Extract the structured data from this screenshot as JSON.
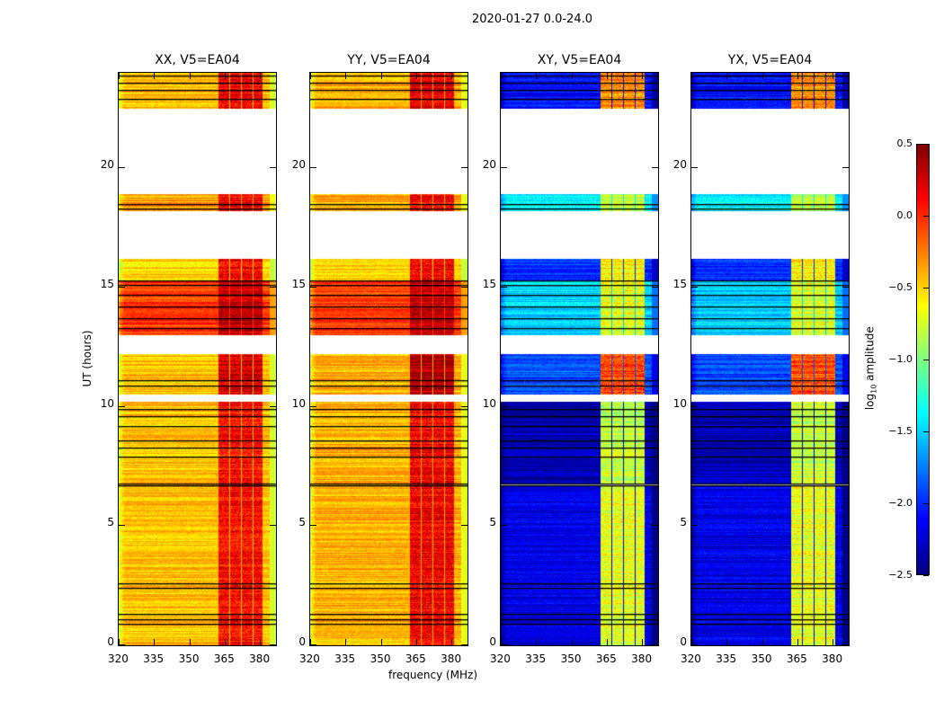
{
  "chart_data": {
    "type": "heatmap",
    "title": "2020-01-27 0.0-24.0",
    "xlabel": "frequency (MHz)",
    "ylabel": "UT (hours)",
    "xlim": [
      320,
      386.8
    ],
    "ylim": [
      0,
      24
    ],
    "xticks": [
      "320",
      "335",
      "350",
      "365",
      "380"
    ],
    "yticks": [
      "0",
      "5",
      "10",
      "15",
      "20"
    ],
    "colorbar": {
      "label": "log10 amplitude",
      "label_main": "log",
      "label_sub": "10",
      "label_rest": " amplitude",
      "range": [
        -2.5,
        0.5
      ],
      "ticks": [
        "−2.5",
        "−2.0",
        "−1.5",
        "−1.0",
        "−0.5",
        "0.0",
        "0.5"
      ],
      "colormap": "jet"
    },
    "flagged_hours": [
      [
        22.6,
        23.1
      ],
      [
        18.9,
        22.5
      ],
      [
        16.2,
        18.2
      ],
      [
        12.2,
        13.0
      ],
      [
        10.2,
        10.5
      ]
    ],
    "flag_lines_hours": [
      0.9,
      1.1,
      1.3,
      2.4,
      2.6,
      6.7,
      6.8,
      7.9,
      8.3,
      8.6,
      9.2,
      9.6,
      9.9,
      10.9,
      11.1,
      13.3,
      13.7,
      14.2,
      14.7,
      15.1,
      15.3,
      18.3,
      18.5,
      22.9,
      23.3,
      23.6,
      23.9
    ],
    "rfi_channels_MHz": [
      [
        362,
        367
      ],
      [
        367,
        372
      ],
      [
        372,
        377
      ],
      [
        377,
        381
      ]
    ],
    "panels": [
      {
        "title": "XX, V5=EA04",
        "segments": [
          {
            "t": [
              0,
              10.2
            ],
            "base": -0.45,
            "rfi": 0.1
          },
          {
            "t": [
              10.5,
              12.2
            ],
            "base": -0.45,
            "rfi": 0.25
          },
          {
            "t": [
              13.0,
              15.3
            ],
            "base": -0.05,
            "rfi": 0.3
          },
          {
            "t": [
              15.3,
              16.2
            ],
            "base": -0.5,
            "rfi": 0.15
          },
          {
            "t": [
              18.2,
              18.9
            ],
            "base": -0.35,
            "rfi": 0.15
          },
          {
            "t": [
              22.5,
              24
            ],
            "base": -0.45,
            "rfi": 0.15
          }
        ]
      },
      {
        "title": "YY, V5=EA04",
        "segments": [
          {
            "t": [
              0,
              10.2
            ],
            "base": -0.4,
            "rfi": 0.15
          },
          {
            "t": [
              10.5,
              12.2
            ],
            "base": -0.4,
            "rfi": 0.35
          },
          {
            "t": [
              13.0,
              15.3
            ],
            "base": -0.05,
            "rfi": 0.3
          },
          {
            "t": [
              15.3,
              16.2
            ],
            "base": -0.5,
            "rfi": 0.15
          },
          {
            "t": [
              18.2,
              18.9
            ],
            "base": -0.4,
            "rfi": 0.1
          },
          {
            "t": [
              22.5,
              24
            ],
            "base": -0.4,
            "rfi": 0.2
          }
        ]
      },
      {
        "title": "XY, V5=EA04",
        "segments": [
          {
            "t": [
              0,
              6.7
            ],
            "base": -2.2,
            "rfi": -0.7
          },
          {
            "t": [
              6.8,
              10.2
            ],
            "base": -2.35,
            "rfi": -0.8
          },
          {
            "t": [
              10.5,
              12.2
            ],
            "base": -1.9,
            "rfi": -0.1
          },
          {
            "t": [
              13.0,
              15.3
            ],
            "base": -1.5,
            "rfi": -0.7
          },
          {
            "t": [
              15.3,
              16.2
            ],
            "base": -2.0,
            "rfi": -0.6
          },
          {
            "t": [
              18.2,
              18.9
            ],
            "base": -1.4,
            "rfi": -0.8
          },
          {
            "t": [
              22.5,
              24
            ],
            "base": -2.1,
            "rfi": -0.3
          }
        ]
      },
      {
        "title": "YX, V5=EA04",
        "segments": [
          {
            "t": [
              0,
              6.7
            ],
            "base": -2.2,
            "rfi": -0.7
          },
          {
            "t": [
              6.8,
              10.2
            ],
            "base": -2.35,
            "rfi": -0.8
          },
          {
            "t": [
              10.5,
              12.2
            ],
            "base": -1.9,
            "rfi": -0.1
          },
          {
            "t": [
              13.0,
              15.3
            ],
            "base": -1.5,
            "rfi": -0.7
          },
          {
            "t": [
              15.3,
              16.2
            ],
            "base": -2.0,
            "rfi": -0.6
          },
          {
            "t": [
              18.2,
              18.9
            ],
            "base": -1.4,
            "rfi": -0.8
          },
          {
            "t": [
              22.5,
              24
            ],
            "base": -2.1,
            "rfi": -0.3
          }
        ]
      }
    ]
  }
}
